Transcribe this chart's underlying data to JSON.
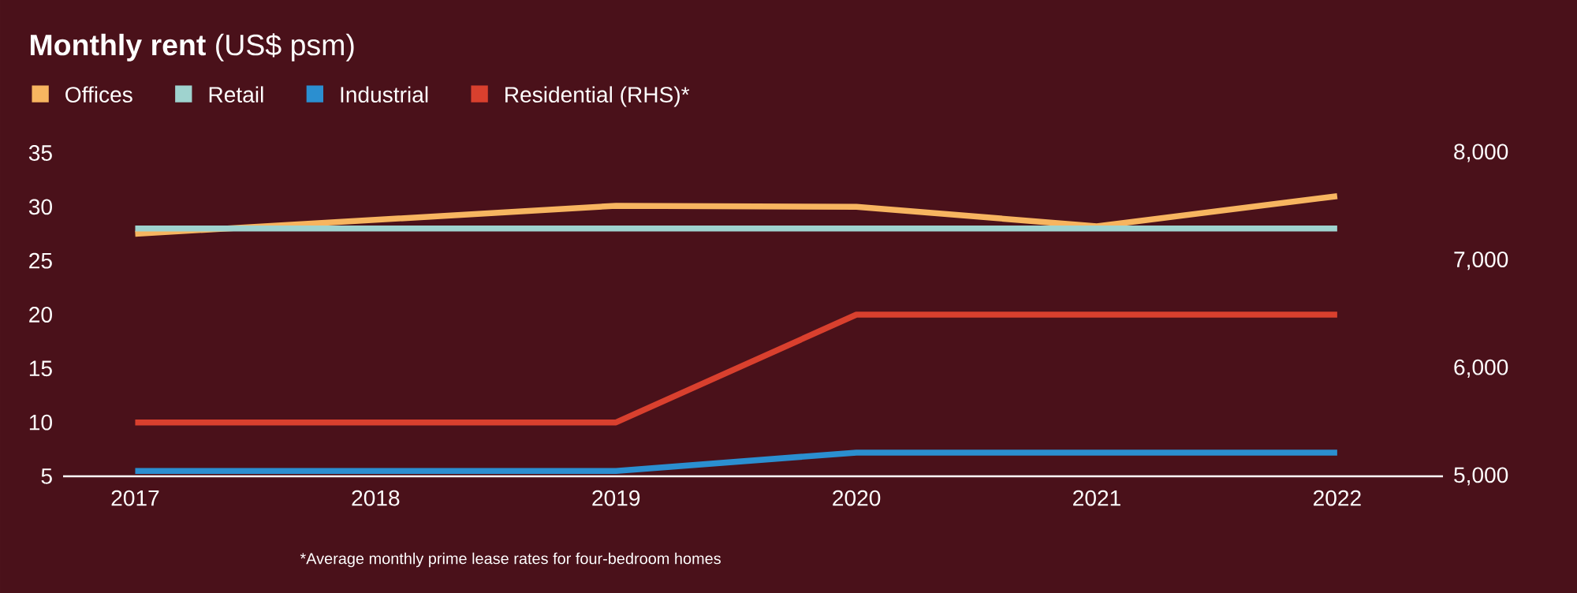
{
  "chart_data": {
    "type": "line",
    "title": "**Monthly rent** (US$ psm)",
    "x": [
      2017,
      2018,
      2019,
      2020,
      2021,
      2022
    ],
    "series": [
      {
        "name": "Offices",
        "color": "#f7b560",
        "values": [
          27.5,
          28.8,
          30.1,
          30,
          28.2,
          31
        ]
      },
      {
        "name": "Retail",
        "color": "#9fd3cf",
        "values": [
          28,
          28,
          28,
          28,
          28,
          28
        ]
      },
      {
        "name": "Industrial",
        "color": "#2b8fd0",
        "values": [
          5.5,
          5.5,
          5.5,
          7.2,
          7.2,
          7.2
        ]
      },
      {
        "name": "Residential (RHS)*",
        "color": "#d9402e",
        "axis": "y2",
        "values": [
          5500,
          5500,
          5500,
          6500,
          6500,
          6500
        ]
      }
    ],
    "xlim": [
      2016.7,
      2022.44
    ],
    "xticks": [
      2017,
      2018,
      2019,
      2020,
      2021,
      2022
    ],
    "ylim": [
      5,
      35
    ],
    "yticks": [
      5,
      10,
      15,
      20,
      25,
      30,
      35
    ],
    "y2lim": [
      5000,
      8000
    ],
    "y2ticks": [
      {
        "value": 5000,
        "label": "5,000"
      },
      {
        "value": 6000,
        "label": "6,000"
      },
      {
        "value": 7000,
        "label": "7,000"
      },
      {
        "value": 8000,
        "label": "8,000"
      }
    ],
    "legend": "top left",
    "grid": false,
    "marker": "none",
    "line_style": "solid",
    "annotations": [
      "*Average monthly prime lease rates for four-bedroom homes"
    ]
  }
}
